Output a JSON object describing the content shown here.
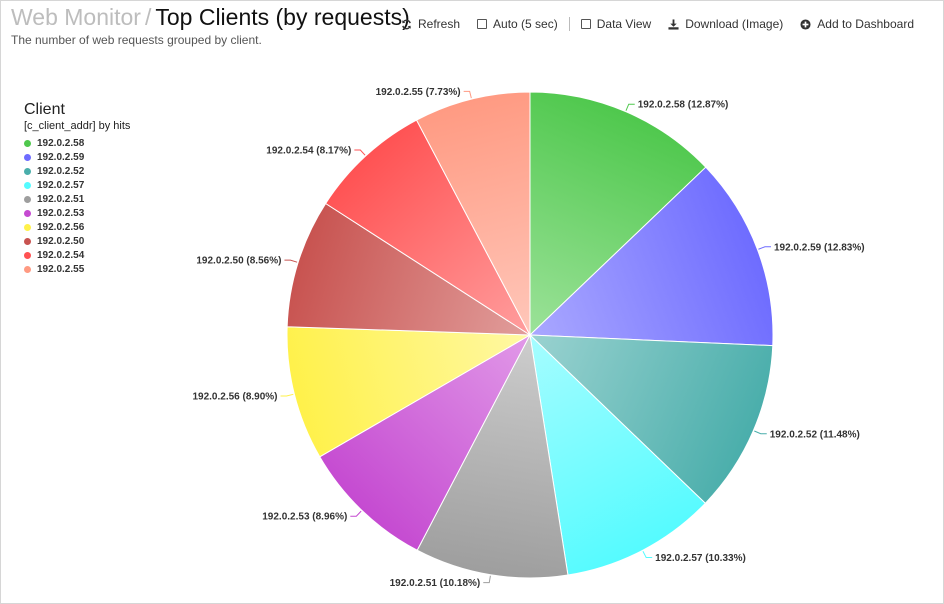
{
  "header": {
    "crumb": "Web Monitor",
    "separator": "/",
    "title": "Top Clients (by requests)",
    "subtitle": "The number of web requests grouped by client."
  },
  "toolbar": {
    "refresh_label": "Refresh",
    "auto_label": "Auto (5 sec)",
    "data_view_label": "Data View",
    "download_label": "Download (Image)",
    "add_dashboard_label": "Add to Dashboard"
  },
  "legend": {
    "title": "Client",
    "subtitle": "[c_client_addr] by hits"
  },
  "chart_data": {
    "type": "pie",
    "legend_position": "top-left",
    "slices": [
      {
        "label": "192.0.2.58",
        "display": "192.0.2.58 (12.87%)",
        "value": 12.87,
        "color": "#4fc84d",
        "light": "#9ce299"
      },
      {
        "label": "192.0.2.59",
        "display": "192.0.2.59 (12.83%)",
        "value": 12.83,
        "color": "#6e6cff",
        "light": "#aaa8ff"
      },
      {
        "label": "192.0.2.52",
        "display": "192.0.2.52 (11.48%)",
        "value": 11.48,
        "color": "#4aaeab",
        "light": "#9ad2d0"
      },
      {
        "label": "192.0.2.57",
        "display": "192.0.2.57 (10.33%)",
        "value": 10.33,
        "color": "#55fbff",
        "light": "#a6fdff"
      },
      {
        "label": "192.0.2.51",
        "display": "192.0.2.51 (10.18%)",
        "value": 10.18,
        "color": "#9e9e9e",
        "light": "#cdcdcd"
      },
      {
        "label": "192.0.2.53",
        "display": "192.0.2.53 (8.96%)",
        "value": 8.96,
        "color": "#c54ad1",
        "light": "#e199e8"
      },
      {
        "label": "192.0.2.56",
        "display": "192.0.2.56 (8.90%)",
        "value": 8.9,
        "color": "#fff14a",
        "light": "#fff8a4"
      },
      {
        "label": "192.0.2.50",
        "display": "192.0.2.50 (8.56%)",
        "value": 8.56,
        "color": "#c85350",
        "light": "#e19e9c"
      },
      {
        "label": "192.0.2.54",
        "display": "192.0.2.54 (8.17%)",
        "value": 8.17,
        "color": "#ff5253",
        "light": "#ff9e9e"
      },
      {
        "label": "192.0.2.55",
        "display": "192.0.2.55 (7.73%)",
        "value": 7.73,
        "color": "#ff9a82",
        "light": "#ffc7ba"
      }
    ]
  }
}
